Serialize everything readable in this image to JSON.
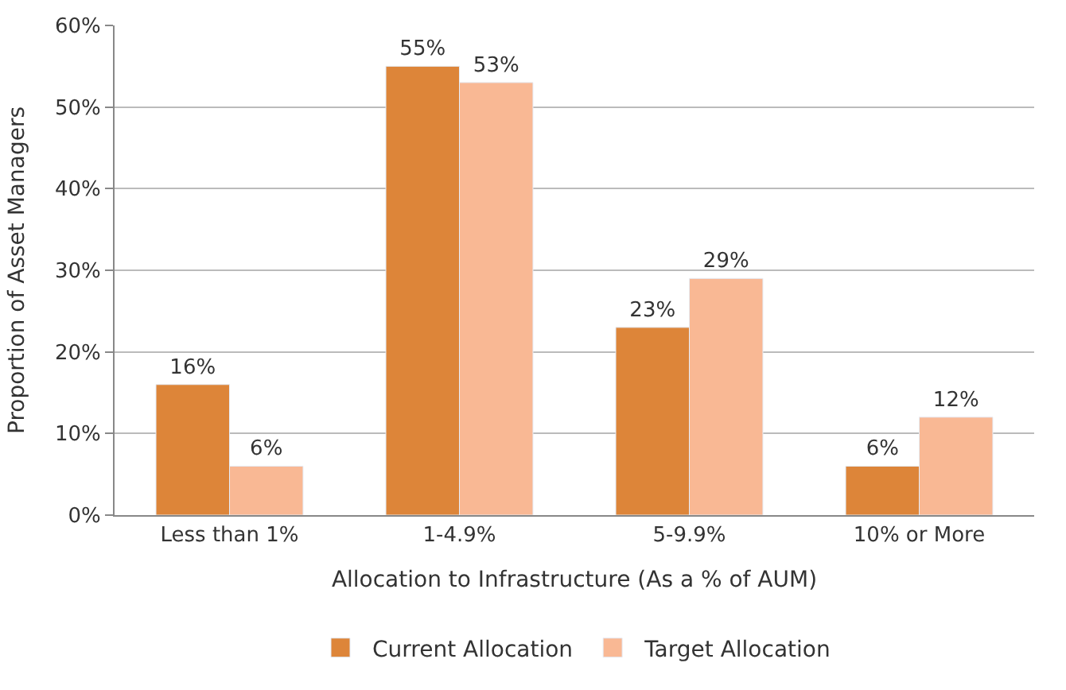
{
  "chart_data": {
    "type": "bar",
    "xlabel": "Allocation to Infrastructure (As a % of AUM)",
    "ylabel": "Proportion of Asset Managers",
    "categories": [
      "Less than 1%",
      "1-4.9%",
      "5-9.9%",
      "10% or More"
    ],
    "series": [
      {
        "name": "Current Allocation",
        "color": "#dd8539",
        "values": [
          16,
          55,
          23,
          6
        ],
        "value_labels": [
          "16%",
          "55%",
          "23%",
          "6%"
        ]
      },
      {
        "name": "Target Allocation",
        "color": "#f9b894",
        "values": [
          6,
          53,
          29,
          12
        ],
        "value_labels": [
          "6%",
          "53%",
          "29%",
          "12%"
        ]
      }
    ],
    "ylim": [
      0,
      60
    ],
    "yticks": [
      {
        "value": 0,
        "label": "0%"
      },
      {
        "value": 10,
        "label": "10%"
      },
      {
        "value": 20,
        "label": "20%"
      },
      {
        "value": 30,
        "label": "30%"
      },
      {
        "value": 40,
        "label": "40%"
      },
      {
        "value": 50,
        "label": "50%"
      },
      {
        "value": 60,
        "label": "60%"
      }
    ],
    "grid": "y",
    "legend": "bottom"
  }
}
